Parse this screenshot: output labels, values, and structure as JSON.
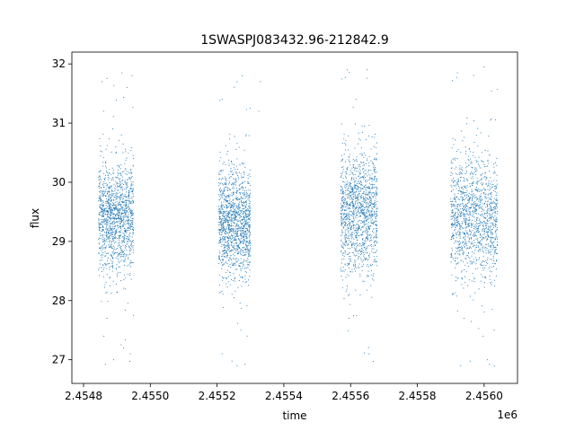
{
  "chart_data": {
    "type": "scatter",
    "title": "1SWASPJ083432.96-212842.9",
    "xlabel": "time",
    "ylabel": "flux",
    "x_offset_label": "1e6",
    "x_unit_scale": 1000000,
    "xlim": [
      2454765,
      2456100
    ],
    "ylim": [
      26.6,
      32.2
    ],
    "grid": false,
    "legend": "none",
    "marker_color": "#1f77b4",
    "x_ticks": [
      2454800,
      2455000,
      2455200,
      2455400,
      2455600,
      2455800,
      2456000
    ],
    "x_tick_labels": [
      "2.4548",
      "2.4550",
      "2.4552",
      "2.4554",
      "2.4556",
      "2.4558",
      "2.4560"
    ],
    "y_ticks": [
      27,
      28,
      29,
      30,
      31,
      32
    ],
    "y_tick_labels": [
      "27",
      "28",
      "29",
      "30",
      "31",
      "32"
    ],
    "seasons": [
      {
        "x_start": 2454845,
        "x_end": 2454950,
        "center": 29.4,
        "spread": 0.45,
        "low": 26.9,
        "high": 31.9
      },
      {
        "x_start": 2455205,
        "x_end": 2455300,
        "center": 29.3,
        "spread": 0.45,
        "low": 26.8,
        "high": 31.8
      },
      {
        "x_start": 2455570,
        "x_end": 2455680,
        "center": 29.5,
        "spread": 0.5,
        "low": 26.9,
        "high": 32.0
      },
      {
        "x_start": 2455900,
        "x_end": 2456040,
        "center": 29.4,
        "spread": 0.5,
        "low": 26.8,
        "high": 32.0
      }
    ],
    "outliers": [
      {
        "x": 2454855,
        "y": 31.7
      },
      {
        "x": 2454860,
        "y": 31.2
      },
      {
        "x": 2454870,
        "y": 27.7
      },
      {
        "x": 2454890,
        "y": 27.0
      },
      {
        "x": 2454915,
        "y": 31.85
      },
      {
        "x": 2454930,
        "y": 31.6
      },
      {
        "x": 2454945,
        "y": 31.8
      },
      {
        "x": 2454940,
        "y": 27.1
      },
      {
        "x": 2454920,
        "y": 27.2
      },
      {
        "x": 2455215,
        "y": 31.4
      },
      {
        "x": 2455215,
        "y": 27.1
      },
      {
        "x": 2455260,
        "y": 31.7
      },
      {
        "x": 2455275,
        "y": 31.8
      },
      {
        "x": 2455260,
        "y": 26.9
      },
      {
        "x": 2455290,
        "y": 27.4
      },
      {
        "x": 2455330,
        "y": 31.7
      },
      {
        "x": 2455325,
        "y": 31.2
      },
      {
        "x": 2455590,
        "y": 31.9
      },
      {
        "x": 2455595,
        "y": 27.7
      },
      {
        "x": 2455650,
        "y": 31.9
      },
      {
        "x": 2455655,
        "y": 27.1
      },
      {
        "x": 2455920,
        "y": 31.85
      },
      {
        "x": 2455940,
        "y": 27.7
      },
      {
        "x": 2455930,
        "y": 26.9
      },
      {
        "x": 2456000,
        "y": 31.95
      },
      {
        "x": 2456010,
        "y": 27.0
      },
      {
        "x": 2456030,
        "y": 27.5
      }
    ]
  }
}
